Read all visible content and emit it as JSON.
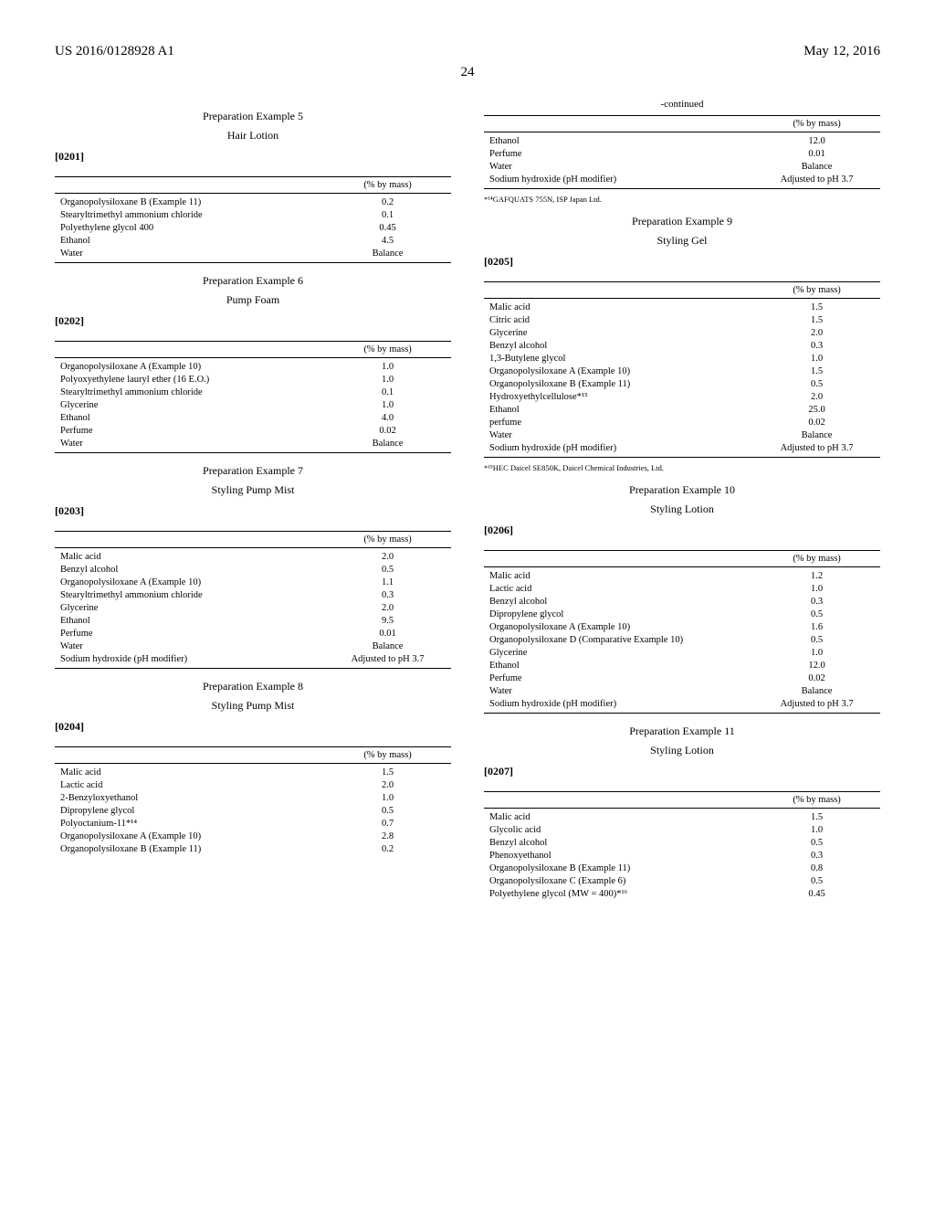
{
  "header": {
    "left": "US 2016/0128928 A1",
    "right": "May 12, 2016",
    "pagenum": "24"
  },
  "col1": {
    "prep5": {
      "title": "Preparation Example 5",
      "sub": "Hair Lotion",
      "para": "[0201]",
      "thead": "(% by mass)",
      "rows": [
        [
          "Organopolysiloxane B (Example 11)",
          "0.2"
        ],
        [
          "Stearyltrimethyl ammonium chloride",
          "0.1"
        ],
        [
          "Polyethylene glycol 400",
          "0.45"
        ],
        [
          "Ethanol",
          "4.5"
        ],
        [
          "Water",
          "Balance"
        ]
      ]
    },
    "prep6": {
      "title": "Preparation Example 6",
      "sub": "Pump Foam",
      "para": "[0202]",
      "thead": "(% by mass)",
      "rows": [
        [
          "Organopolysiloxane A (Example 10)",
          "1.0"
        ],
        [
          "Polyoxyethylene lauryl ether (16 E.O.)",
          "1.0"
        ],
        [
          "Stearyltrimethyl ammonium chloride",
          "0.1"
        ],
        [
          "Glycerine",
          "1.0"
        ],
        [
          "Ethanol",
          "4.0"
        ],
        [
          "Perfume",
          "0.02"
        ],
        [
          "Water",
          "Balance"
        ]
      ]
    },
    "prep7": {
      "title": "Preparation Example 7",
      "sub": "Styling Pump Mist",
      "para": "[0203]",
      "thead": "(% by mass)",
      "rows": [
        [
          "Malic acid",
          "2.0"
        ],
        [
          "Benzyl alcohol",
          "0.5"
        ],
        [
          "Organopolysiloxane A (Example 10)",
          "1.1"
        ],
        [
          "Stearyltrimethyl ammonium chloride",
          "0.3"
        ],
        [
          "Glycerine",
          "2.0"
        ],
        [
          "Ethanol",
          "9.5"
        ],
        [
          "Perfume",
          "0.01"
        ],
        [
          "Water",
          "Balance"
        ],
        [
          "Sodium hydroxide (pH modifier)",
          "Adjusted to pH 3.7"
        ]
      ]
    },
    "prep8": {
      "title": "Preparation Example 8",
      "sub": "Styling Pump Mist",
      "para": "[0204]",
      "thead": "(% by mass)",
      "rows": [
        [
          "Malic acid",
          "1.5"
        ],
        [
          "Lactic acid",
          "2.0"
        ],
        [
          "2-Benzyloxyethanol",
          "1.0"
        ],
        [
          "Dipropylene glycol",
          "0.5"
        ],
        [
          "Polyoctanium-11*¹⁴",
          "0.7"
        ],
        [
          "Organopolysiloxane A (Example 10)",
          "2.8"
        ],
        [
          "Organopolysiloxane B (Example 11)",
          "0.2"
        ]
      ]
    }
  },
  "col2": {
    "cont": {
      "label": "-continued",
      "thead": "(% by mass)",
      "rows": [
        [
          "Ethanol",
          "12.0"
        ],
        [
          "Perfume",
          "0.01"
        ],
        [
          "Water",
          "Balance"
        ],
        [
          "Sodium hydroxide (pH modifier)",
          "Adjusted to pH 3.7"
        ]
      ],
      "footnote": "*¹⁴GAFQUATS 755N, ISP Japan Ltd."
    },
    "prep9": {
      "title": "Preparation Example 9",
      "sub": "Styling Gel",
      "para": "[0205]",
      "thead": "(% by mass)",
      "rows": [
        [
          "Malic acid",
          "1.5"
        ],
        [
          "Citric acid",
          "1.5"
        ],
        [
          "Glycerine",
          "2.0"
        ],
        [
          "Benzyl alcohol",
          "0.3"
        ],
        [
          "1,3-Butylene glycol",
          "1.0"
        ],
        [
          "Organopolysiloxane A (Example 10)",
          "1.5"
        ],
        [
          "Organopolysiloxane B (Example 11)",
          "0.5"
        ],
        [
          "Hydroxyethylcellulose*¹⁵",
          "2.0"
        ],
        [
          "Ethanol",
          "25.0"
        ],
        [
          "perfume",
          "0.02"
        ],
        [
          "Water",
          "Balance"
        ],
        [
          "Sodium hydroxide (pH modifier)",
          "Adjusted to pH 3.7"
        ]
      ],
      "footnote": "*¹⁵HEC Daicel SE850K, Daicel Chemical Industries, Ltd."
    },
    "prep10": {
      "title": "Preparation Example 10",
      "sub": "Styling Lotion",
      "para": "[0206]",
      "thead": "(% by mass)",
      "rows": [
        [
          "Malic acid",
          "1.2"
        ],
        [
          "Lactic acid",
          "1.0"
        ],
        [
          "Benzyl alcohol",
          "0.3"
        ],
        [
          "Dipropylene glycol",
          "0.5"
        ],
        [
          "Organopolysiloxane A (Example 10)",
          "1.6"
        ],
        [
          "Organopolysiloxane D (Comparative Example 10)",
          "0.5"
        ],
        [
          "Glycerine",
          "1.0"
        ],
        [
          "Ethanol",
          "12.0"
        ],
        [
          "Perfume",
          "0.02"
        ],
        [
          "Water",
          "Balance"
        ],
        [
          "Sodium hydroxide (pH modifier)",
          "Adjusted to pH 3.7"
        ]
      ]
    },
    "prep11": {
      "title": "Preparation Example 11",
      "sub": "Styling Lotion",
      "para": "[0207]",
      "thead": "(% by mass)",
      "rows": [
        [
          "Malic acid",
          "1.5"
        ],
        [
          "Glycolic acid",
          "1.0"
        ],
        [
          "Benzyl alcohol",
          "0.5"
        ],
        [
          "Phenoxyethanol",
          "0.3"
        ],
        [
          "Organopolysiloxane B (Example 11)",
          "0.8"
        ],
        [
          "Organopolysiloxane C (Example 6)",
          "0.5"
        ],
        [
          "Polyethylene glycol (MW = 400)*¹⁶",
          "0.45"
        ]
      ]
    }
  }
}
